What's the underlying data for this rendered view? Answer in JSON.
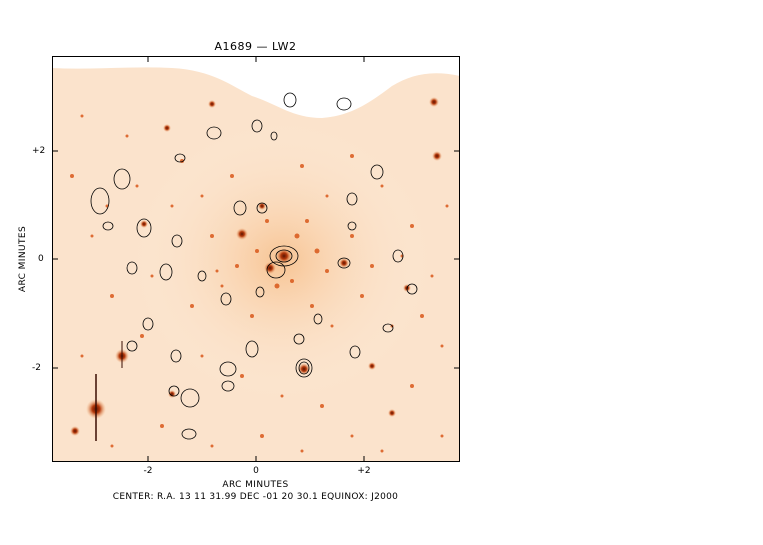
{
  "title": "A1689 — LW2",
  "x_axis": {
    "label": "ARC MINUTES",
    "ticks": [
      "-2",
      "0",
      "+2"
    ]
  },
  "y_axis": {
    "label": "ARC MINUTES",
    "ticks": [
      "+2",
      "0",
      "-2"
    ]
  },
  "caption": "CENTER: R.A. 13 11 31.99 DEC -01 20 30.1  EQUINOX: J2000",
  "colors": {
    "background": "#fdeede",
    "source": "#d9581a",
    "source_bright": "#7a1c05",
    "contour": "#000000"
  }
}
